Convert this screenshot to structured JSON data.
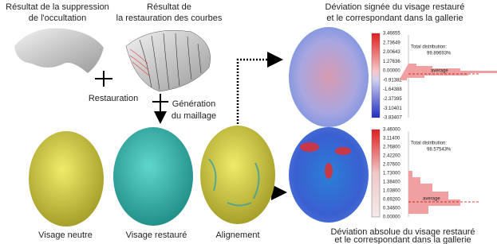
{
  "top_left": {
    "title": [
      "Résultat de la suppression",
      "de l'occultation"
    ]
  },
  "top_middle": {
    "title": [
      "Résultat de",
      "la restauration des courbes"
    ]
  },
  "steps": {
    "restoration": "Restauration",
    "meshing": [
      "Génération",
      "du maillage"
    ]
  },
  "signed_deviation": {
    "title": [
      "Déviation signée du visage restauré",
      "et le correspondant dans la gallerie"
    ],
    "colorbar_ticks": [
      "3.46655",
      "2.73649",
      "2.00643",
      "1.27636",
      "0.00000",
      "-0.91382",
      "-1.64388",
      "-2.37395",
      "-3.10401",
      "-3.83407"
    ],
    "distribution_label": "Total distribution:",
    "distribution_value": "99.89693%",
    "average_label": "average"
  },
  "absolute_deviation": {
    "title": [
      "Déviation absolue du visage restauré",
      "et le correspondant dans la gallerie"
    ],
    "colorbar_ticks": [
      "3.46000",
      "3.11400",
      "2.76800",
      "2.42200",
      "2.07600",
      "1.73000",
      "1.38400",
      "1.03800",
      "0.69200",
      "0.34600",
      "0.00000"
    ],
    "distribution_label": "Total distribution:",
    "distribution_value": "98.57543%",
    "average_label": "average"
  },
  "bottom_labels": [
    "Visage neutre",
    "Visage restauré",
    "Alignement"
  ]
}
